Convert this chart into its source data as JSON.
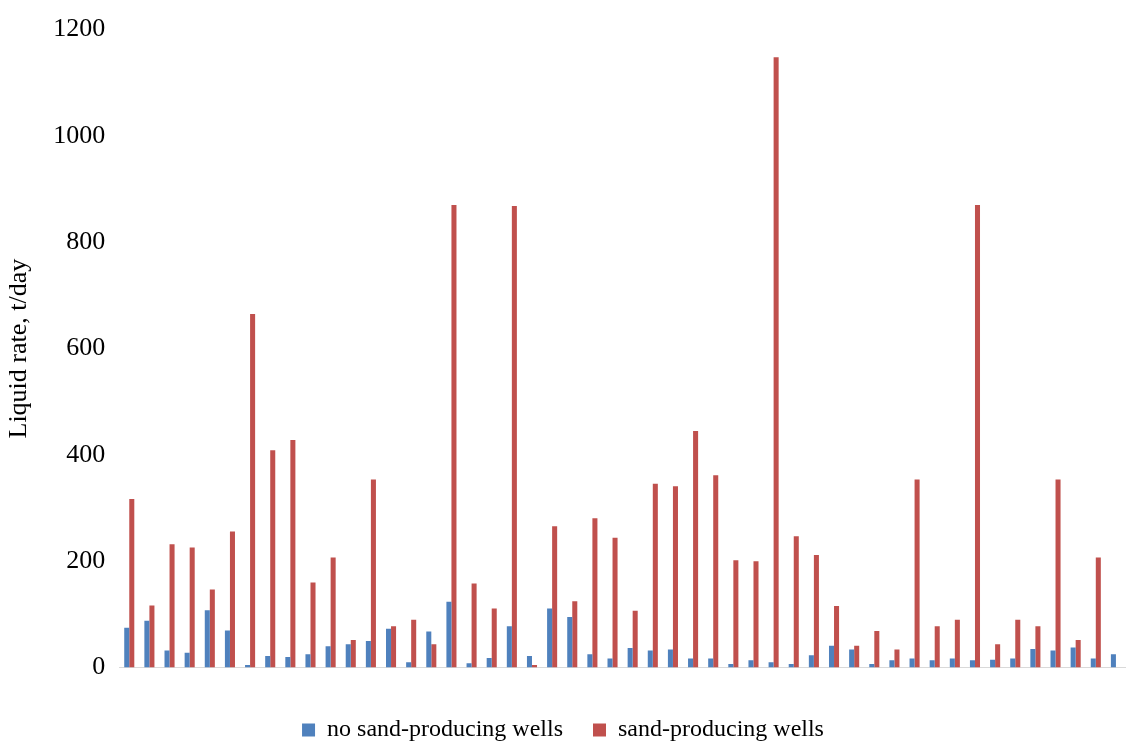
{
  "chart_data": {
    "type": "bar",
    "ylabel": "Liquid rate, t/day",
    "categories": [
      null,
      null,
      null,
      null,
      null,
      null,
      null,
      null,
      null,
      null,
      null,
      null,
      null,
      null,
      null,
      null,
      null,
      null,
      null,
      null,
      null,
      null,
      null,
      null,
      null,
      null,
      null,
      null,
      null,
      null,
      null,
      null,
      null,
      null,
      null,
      null,
      null,
      null,
      null,
      null,
      null,
      null,
      null,
      null,
      null,
      null,
      null,
      null,
      null,
      null
    ],
    "series": [
      {
        "name": "no sand-producing wells",
        "color": "#4f81bd",
        "values": [
          75,
          88,
          32,
          28,
          108,
          70,
          5,
          22,
          20,
          25,
          40,
          44,
          50,
          73,
          10,
          68,
          124,
          8,
          18,
          78,
          22,
          111,
          95,
          25,
          17,
          37,
          32,
          34,
          17,
          17,
          7,
          14,
          10,
          7,
          23,
          41,
          34,
          7,
          14,
          17,
          14,
          17,
          14,
          15,
          17,
          35,
          32,
          38,
          17,
          25
        ]
      },
      {
        "name": "sand-producing wells",
        "color": "#c0504d",
        "values": [
          317,
          117,
          232,
          226,
          147,
          256,
          665,
          409,
          428,
          160,
          207,
          52,
          354,
          78,
          90,
          44,
          870,
          158,
          111,
          868,
          5,
          266,
          125,
          281,
          244,
          107,
          346,
          341,
          445,
          362,
          202,
          200,
          1148,
          247,
          212,
          116,
          41,
          69,
          34,
          354,
          78,
          90,
          870,
          44,
          90,
          78,
          354,
          52,
          207,
          null
        ]
      }
    ],
    "ylim": [
      0,
      1200
    ],
    "yticks": [
      0,
      200,
      400,
      600,
      800,
      1000,
      1200
    ],
    "grid": false,
    "legend": "bottom"
  }
}
